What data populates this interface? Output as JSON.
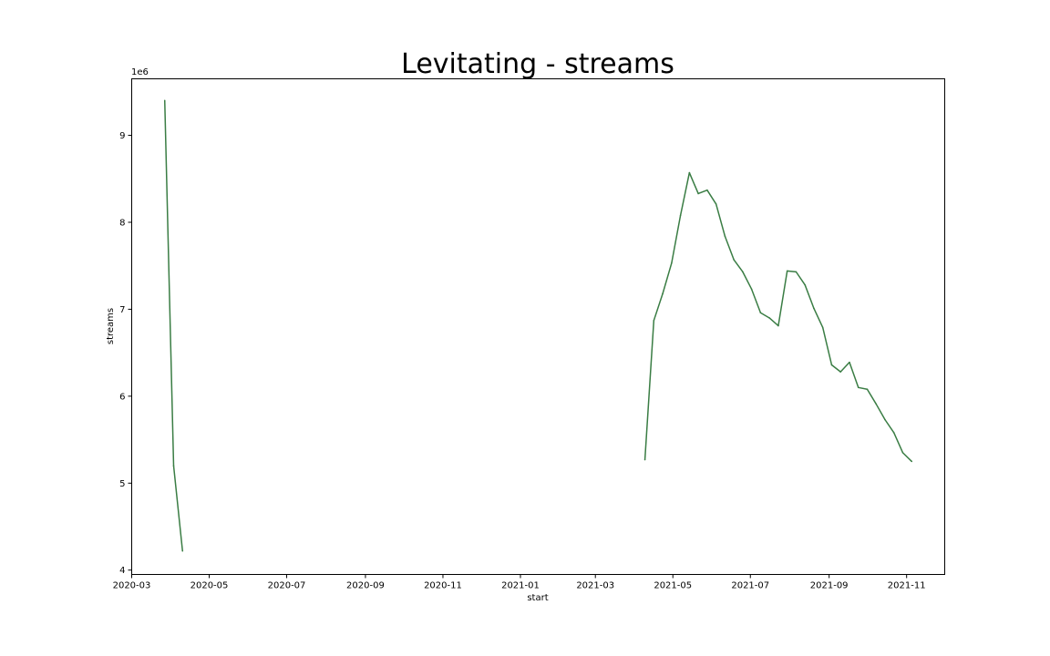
{
  "chart_data": {
    "type": "line",
    "title": "Levitating - streams",
    "xlabel": "start",
    "ylabel": "streams",
    "y_offset_label": "1e6",
    "xlim": [
      "2020-03-01",
      "2021-12-01"
    ],
    "ylim": [
      3950000,
      9650000
    ],
    "grid": false,
    "line_color": "#3a7d44",
    "x_ticks": [
      "2020-03",
      "2020-05",
      "2020-07",
      "2020-09",
      "2020-11",
      "2021-01",
      "2021-03",
      "2021-05",
      "2021-07",
      "2021-09",
      "2021-11"
    ],
    "y_ticks": [
      {
        "value": 4000000,
        "label": "4"
      },
      {
        "value": 5000000,
        "label": "5"
      },
      {
        "value": 6000000,
        "label": "6"
      },
      {
        "value": 7000000,
        "label": "7"
      },
      {
        "value": 8000000,
        "label": "8"
      },
      {
        "value": 9000000,
        "label": "9"
      }
    ],
    "series": [
      {
        "segments": [
          [
            {
              "x": "2020-03-27",
              "y": 9400000
            },
            {
              "x": "2020-04-03",
              "y": 5200000
            },
            {
              "x": "2020-04-10",
              "y": 4220000
            }
          ],
          [
            {
              "x": "2021-04-09",
              "y": 5270000
            },
            {
              "x": "2021-04-16",
              "y": 6870000
            },
            {
              "x": "2021-04-23",
              "y": 7180000
            },
            {
              "x": "2021-04-30",
              "y": 7530000
            },
            {
              "x": "2021-05-07",
              "y": 8080000
            },
            {
              "x": "2021-05-14",
              "y": 8570000
            },
            {
              "x": "2021-05-21",
              "y": 8330000
            },
            {
              "x": "2021-05-28",
              "y": 8370000
            },
            {
              "x": "2021-06-04",
              "y": 8210000
            },
            {
              "x": "2021-06-11",
              "y": 7840000
            },
            {
              "x": "2021-06-18",
              "y": 7570000
            },
            {
              "x": "2021-06-25",
              "y": 7430000
            },
            {
              "x": "2021-07-02",
              "y": 7230000
            },
            {
              "x": "2021-07-09",
              "y": 6960000
            },
            {
              "x": "2021-07-16",
              "y": 6900000
            },
            {
              "x": "2021-07-23",
              "y": 6810000
            },
            {
              "x": "2021-07-30",
              "y": 7440000
            },
            {
              "x": "2021-08-06",
              "y": 7430000
            },
            {
              "x": "2021-08-13",
              "y": 7280000
            },
            {
              "x": "2021-08-20",
              "y": 7010000
            },
            {
              "x": "2021-08-27",
              "y": 6790000
            },
            {
              "x": "2021-09-03",
              "y": 6360000
            },
            {
              "x": "2021-09-10",
              "y": 6280000
            },
            {
              "x": "2021-09-17",
              "y": 6390000
            },
            {
              "x": "2021-09-24",
              "y": 6100000
            },
            {
              "x": "2021-10-01",
              "y": 6080000
            },
            {
              "x": "2021-10-08",
              "y": 5910000
            },
            {
              "x": "2021-10-15",
              "y": 5730000
            },
            {
              "x": "2021-10-22",
              "y": 5580000
            },
            {
              "x": "2021-10-29",
              "y": 5350000
            },
            {
              "x": "2021-11-05",
              "y": 5250000
            }
          ]
        ]
      }
    ]
  }
}
